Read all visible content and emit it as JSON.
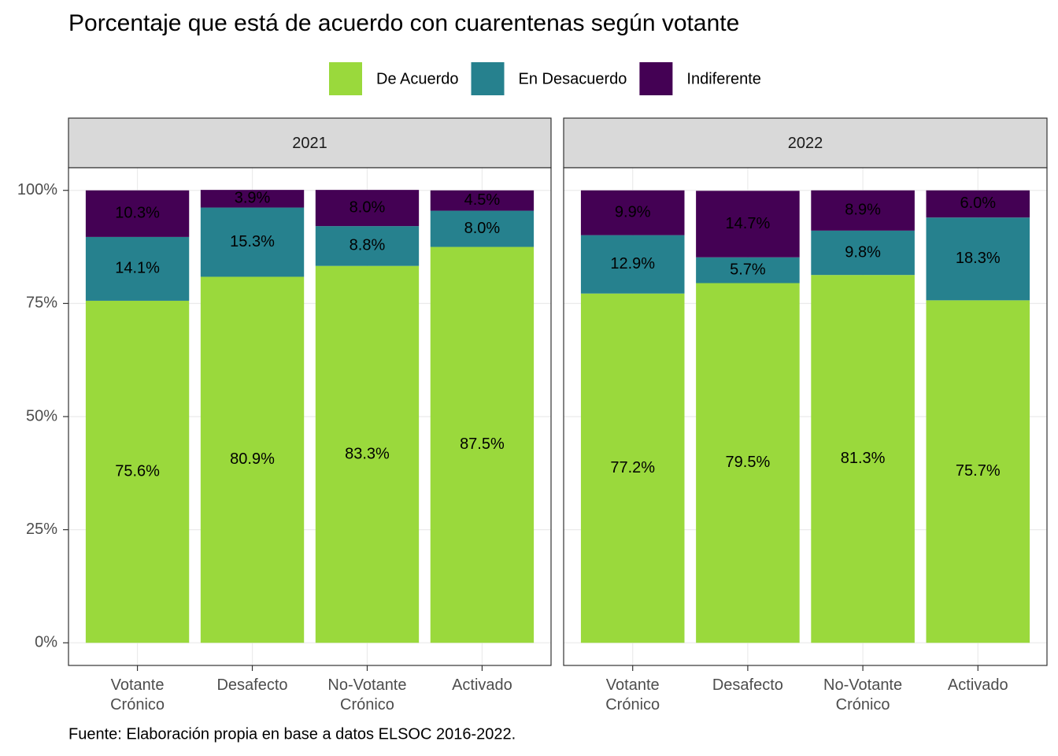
{
  "title": "Porcentaje que está de acuerdo con cuarentenas según votante",
  "caption": "Fuente: Elaboración propia en base a datos ELSOC 2016-2022.",
  "chart_data": [
    {
      "type": "bar",
      "stacked": true,
      "panel": "2021",
      "categories": [
        "Votante Crónico",
        "Desafecto",
        "No-Votante Crónico",
        "Activado"
      ],
      "series": [
        {
          "name": "De Acuerdo",
          "color": "#9ad93c",
          "values": [
            75.6,
            80.9,
            83.3,
            87.5
          ],
          "value_labels": [
            "75.6%",
            "80.9%",
            "83.3%",
            "87.5%"
          ]
        },
        {
          "name": "En Desacuerdo",
          "color": "#26818e",
          "values": [
            14.1,
            15.3,
            8.8,
            8.0
          ],
          "value_labels": [
            "14.1%",
            "15.3%",
            "8.8%",
            "8.0%"
          ]
        },
        {
          "name": "Indiferente",
          "color": "#440154",
          "values": [
            10.3,
            3.9,
            8.0,
            4.5
          ],
          "value_labels": [
            "10.3%",
            "3.9%",
            "8.0%",
            "4.5%"
          ]
        }
      ],
      "ylim": [
        -5,
        105
      ],
      "yticks": [
        {
          "value": 0,
          "label": "0%"
        },
        {
          "value": 25,
          "label": "25%"
        },
        {
          "value": 50,
          "label": "50%"
        },
        {
          "value": 75,
          "label": "75%"
        },
        {
          "value": 100,
          "label": "100%"
        }
      ],
      "grid": true
    },
    {
      "type": "bar",
      "stacked": true,
      "panel": "2022",
      "categories": [
        "Votante Crónico",
        "Desafecto",
        "No-Votante Crónico",
        "Activado"
      ],
      "series": [
        {
          "name": "De Acuerdo",
          "color": "#9ad93c",
          "values": [
            77.2,
            79.5,
            81.3,
            75.7
          ],
          "value_labels": [
            "77.2%",
            "79.5%",
            "81.3%",
            "75.7%"
          ]
        },
        {
          "name": "En Desacuerdo",
          "color": "#26818e",
          "values": [
            12.9,
            5.7,
            9.8,
            18.3
          ],
          "value_labels": [
            "12.9%",
            "5.7%",
            "9.8%",
            "18.3%"
          ]
        },
        {
          "name": "Indiferente",
          "color": "#440154",
          "values": [
            9.9,
            14.7,
            8.9,
            6.0
          ],
          "value_labels": [
            "9.9%",
            "14.7%",
            "8.9%",
            "6.0%"
          ]
        }
      ],
      "ylim": [
        -5,
        105
      ],
      "yticks": [
        {
          "value": 0,
          "label": "0%"
        },
        {
          "value": 25,
          "label": "25%"
        },
        {
          "value": 50,
          "label": "50%"
        },
        {
          "value": 75,
          "label": "75%"
        },
        {
          "value": 100,
          "label": "100%"
        }
      ],
      "grid": true
    }
  ]
}
